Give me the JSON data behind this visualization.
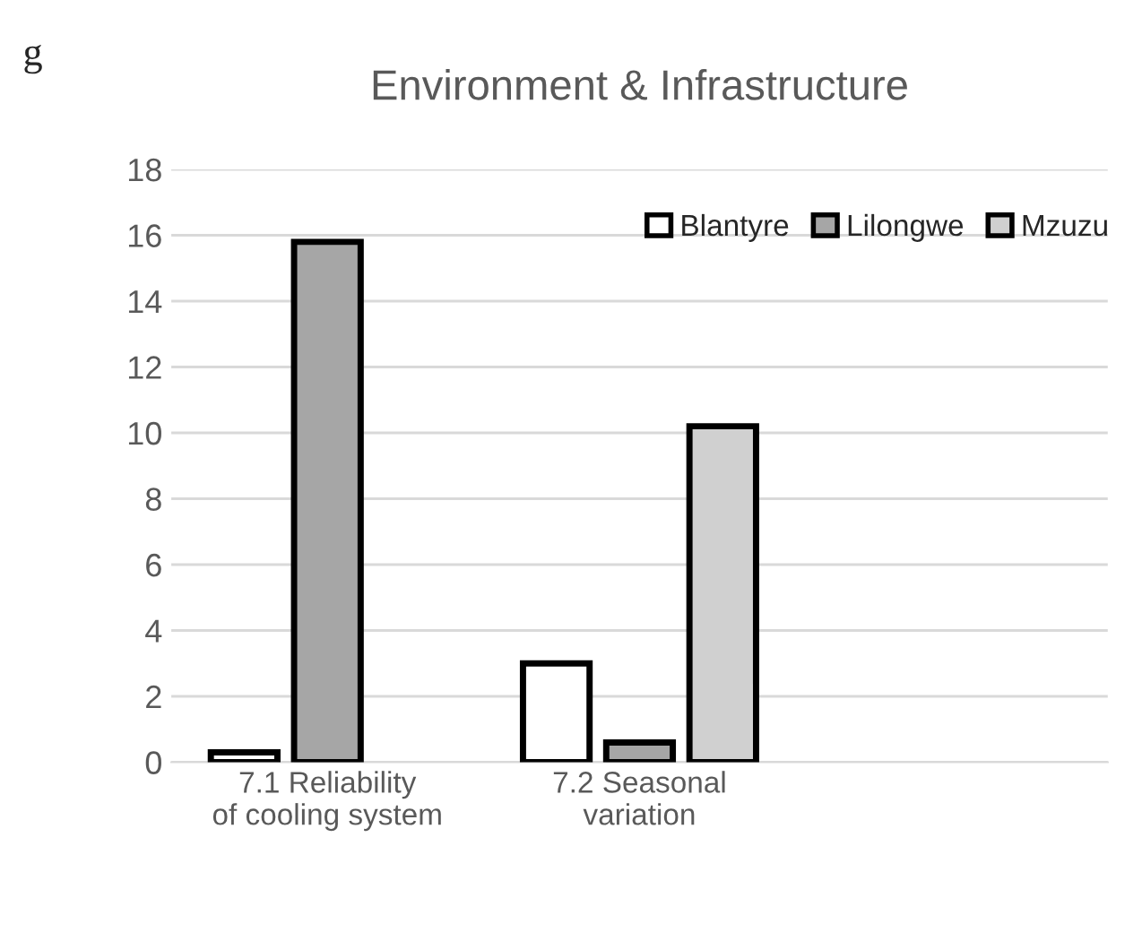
{
  "chart_data": {
    "type": "bar",
    "title": "Environment & Infrastructure",
    "categories": [
      "7.1 Reliability of cooling system",
      "7.2 Seasonal variation",
      null
    ],
    "series": [
      {
        "name": "Blantyre",
        "color": "#ffffff",
        "values": [
          0.3,
          3.0,
          null
        ]
      },
      {
        "name": "Lilongwe",
        "color": "#a6a6a6",
        "values": [
          15.8,
          0.6,
          null
        ]
      },
      {
        "name": "Mzuzu",
        "color": "#d0d0d0",
        "values": [
          null,
          10.2,
          null
        ]
      }
    ],
    "ylim": [
      0,
      18
    ],
    "yticks": [
      0,
      2,
      4,
      6,
      8,
      10,
      12,
      14,
      16,
      18
    ],
    "grid": "y",
    "legend": "top right",
    "annotations": [
      "g"
    ]
  }
}
